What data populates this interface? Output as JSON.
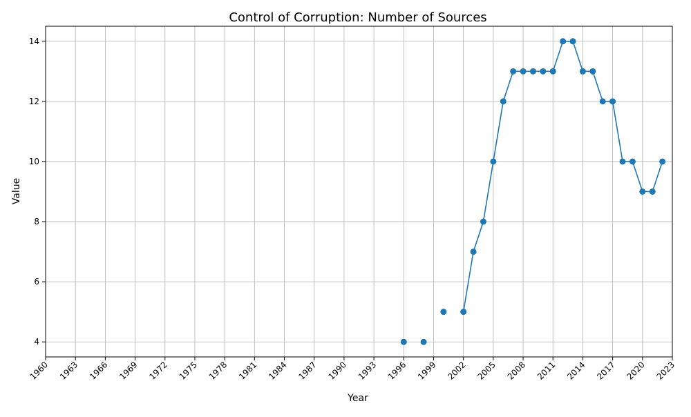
{
  "chart_data": {
    "type": "line",
    "title": "Control of Corruption: Number of Sources",
    "xlabel": "Year",
    "ylabel": "Value",
    "xlim": [
      1960,
      2023
    ],
    "ylim": [
      3.5,
      14.5
    ],
    "grid": true,
    "marker": "circle",
    "x_ticks": [
      1960,
      1963,
      1966,
      1969,
      1972,
      1975,
      1978,
      1981,
      1984,
      1987,
      1990,
      1993,
      1996,
      1999,
      2002,
      2005,
      2008,
      2011,
      2014,
      2017,
      2020,
      2023
    ],
    "y_ticks": [
      4,
      6,
      8,
      10,
      12,
      14
    ],
    "series": [
      {
        "color": "#1f77b4",
        "points": [
          {
            "x": 1996,
            "y": 4
          },
          {
            "x": 1998,
            "y": 4
          },
          {
            "x": 2000,
            "y": 5
          },
          {
            "x": 2002,
            "y": 5
          },
          {
            "x": 2003,
            "y": 7
          },
          {
            "x": 2004,
            "y": 8
          },
          {
            "x": 2005,
            "y": 10
          },
          {
            "x": 2006,
            "y": 12
          },
          {
            "x": 2007,
            "y": 13
          },
          {
            "x": 2008,
            "y": 13
          },
          {
            "x": 2009,
            "y": 13
          },
          {
            "x": 2010,
            "y": 13
          },
          {
            "x": 2011,
            "y": 13
          },
          {
            "x": 2012,
            "y": 14
          },
          {
            "x": 2013,
            "y": 14
          },
          {
            "x": 2014,
            "y": 13
          },
          {
            "x": 2015,
            "y": 13
          },
          {
            "x": 2016,
            "y": 12
          },
          {
            "x": 2017,
            "y": 12
          },
          {
            "x": 2018,
            "y": 10
          },
          {
            "x": 2019,
            "y": 10
          },
          {
            "x": 2020,
            "y": 9
          },
          {
            "x": 2021,
            "y": 9
          },
          {
            "x": 2022,
            "y": 10
          }
        ]
      }
    ]
  }
}
